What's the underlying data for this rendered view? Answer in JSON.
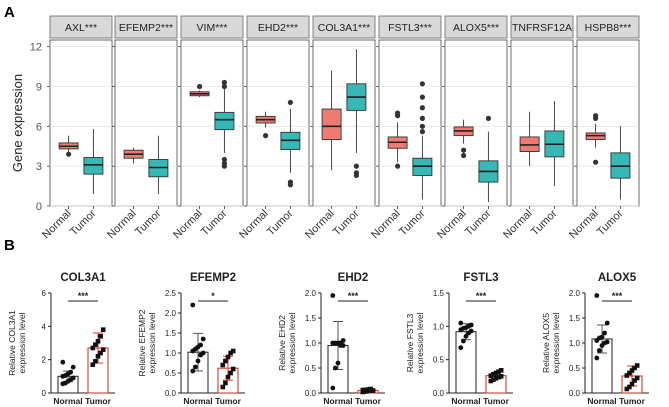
{
  "chart_data": {
    "panel_a": {
      "label": "A",
      "type": "boxplot",
      "ylabel": "Gene expression",
      "ylim": [
        0,
        12.5
      ],
      "yticks": [
        0,
        3,
        6,
        9,
        12
      ],
      "groups": [
        "Normal",
        "Tumor"
      ],
      "colors": {
        "Normal": "#f07a73",
        "Tumor": "#36b8b4"
      },
      "facets": [
        {
          "title": "AXL***",
          "Normal": {
            "q1": 4.3,
            "med": 4.5,
            "q3": 4.75,
            "lo": 4.0,
            "hi": 5.3,
            "out": [
              3.9
            ]
          },
          "Tumor": {
            "q1": 2.4,
            "med": 3.1,
            "q3": 3.65,
            "lo": 0.9,
            "hi": 5.8,
            "out": []
          }
        },
        {
          "title": "EFEMP2***",
          "Normal": {
            "q1": 3.6,
            "med": 3.9,
            "q3": 4.2,
            "lo": 3.2,
            "hi": 4.4,
            "out": []
          },
          "Tumor": {
            "q1": 2.2,
            "med": 2.9,
            "q3": 3.5,
            "lo": 0.9,
            "hi": 5.3,
            "out": []
          }
        },
        {
          "title": "VIM***",
          "Normal": {
            "q1": 8.3,
            "med": 8.45,
            "q3": 8.6,
            "lo": 8.2,
            "hi": 8.7,
            "out": [
              9.0
            ]
          },
          "Tumor": {
            "q1": 5.75,
            "med": 6.5,
            "q3": 7.05,
            "lo": 4.0,
            "hi": 8.8,
            "out": [
              3.5,
              3.2,
              3.0,
              9.0,
              9.3
            ]
          }
        },
        {
          "title": "EHD2***",
          "Normal": {
            "q1": 6.25,
            "med": 6.5,
            "q3": 6.75,
            "lo": 5.9,
            "hi": 7.1,
            "out": [
              5.3
            ]
          },
          "Tumor": {
            "q1": 4.25,
            "med": 4.95,
            "q3": 5.55,
            "lo": 2.5,
            "hi": 7.3,
            "out": [
              1.8,
              1.6,
              7.8
            ]
          }
        },
        {
          "title": "COL3A1***",
          "Normal": {
            "q1": 5.0,
            "med": 6.0,
            "q3": 7.3,
            "lo": 2.7,
            "hi": 10.2,
            "out": []
          },
          "Tumor": {
            "q1": 7.2,
            "med": 8.2,
            "q3": 9.2,
            "lo": 4.0,
            "hi": 11.8,
            "out": [
              3.0,
              2.5,
              2.3
            ]
          }
        },
        {
          "title": "FSTL3***",
          "Normal": {
            "q1": 4.35,
            "med": 4.8,
            "q3": 5.2,
            "lo": 3.3,
            "hi": 6.3,
            "out": [
              6.8,
              7.0,
              3.0
            ]
          },
          "Tumor": {
            "q1": 2.3,
            "med": 3.0,
            "q3": 3.6,
            "lo": 0.5,
            "hi": 5.3,
            "out": [
              5.6,
              6.0,
              6.6,
              7.4,
              8.2,
              9.2
            ]
          }
        },
        {
          "title": "ALOX5***",
          "Normal": {
            "q1": 5.3,
            "med": 5.65,
            "q3": 5.95,
            "lo": 4.7,
            "hi": 6.5,
            "out": [
              4.2,
              3.8
            ]
          },
          "Tumor": {
            "q1": 1.8,
            "med": 2.6,
            "q3": 3.4,
            "lo": 0.3,
            "hi": 5.6,
            "out": [
              6.6
            ]
          }
        },
        {
          "title": "TNFRSF12A",
          "Normal": {
            "q1": 4.1,
            "med": 4.6,
            "q3": 5.2,
            "lo": 3.0,
            "hi": 7.1,
            "out": []
          },
          "Tumor": {
            "q1": 3.7,
            "med": 4.65,
            "q3": 5.65,
            "lo": 1.5,
            "hi": 7.9,
            "out": []
          }
        },
        {
          "title": "HSPB8***",
          "Normal": {
            "q1": 5.0,
            "med": 5.3,
            "q3": 5.5,
            "lo": 4.4,
            "hi": 6.2,
            "out": [
              6.6,
              6.8,
              3.3
            ]
          },
          "Tumor": {
            "q1": 2.1,
            "med": 3.0,
            "q3": 4.0,
            "lo": 0.5,
            "hi": 6.0,
            "out": []
          }
        }
      ]
    },
    "panel_b": {
      "label": "B",
      "type": "bar",
      "categories": [
        "Normal",
        "Tumor"
      ],
      "plots": [
        {
          "title": "COL3A1",
          "ylabel": [
            "Relative COL3A1",
            "expression level"
          ],
          "ylim": [
            0,
            6
          ],
          "yticks": [
            "0",
            "2",
            "4",
            "6"
          ],
          "sig": "***",
          "means": [
            1.0,
            2.7
          ],
          "sd": [
            0.32,
            0.9
          ],
          "normal_points": [
            0.55,
            0.6,
            0.7,
            0.8,
            0.9,
            1.0,
            1.05,
            1.15,
            1.25,
            1.55,
            1.85
          ],
          "tumor_points": [
            1.7,
            1.9,
            2.2,
            2.4,
            2.6,
            2.7,
            2.9,
            3.1,
            3.4,
            3.8
          ]
        },
        {
          "title": "EFEMP2",
          "ylabel": [
            "Relative EFEMP2",
            "expression level"
          ],
          "ylim": [
            0,
            2.5
          ],
          "yticks": [
            "0.0",
            "0.5",
            "1.0",
            "1.5",
            "2.0",
            "2.5"
          ],
          "sig": "*",
          "means": [
            1.02,
            0.62
          ],
          "sd": [
            0.47,
            0.3
          ],
          "normal_points": [
            0.55,
            0.65,
            0.8,
            0.95,
            1.0,
            1.05,
            1.1,
            1.15,
            1.2,
            1.35,
            2.2
          ],
          "tumor_points": [
            0.15,
            0.25,
            0.4,
            0.5,
            0.6,
            0.7,
            0.8,
            0.9,
            1.0,
            1.05
          ]
        },
        {
          "title": "EHD2",
          "ylabel": [
            "Relative EHD2",
            "expression level"
          ],
          "ylim": [
            0,
            2
          ],
          "yticks": [
            "0.0",
            "0.5",
            "1.0",
            "1.5",
            "2.0"
          ],
          "sig": "***",
          "means": [
            0.95,
            0.05
          ],
          "sd": [
            0.48,
            0.03
          ],
          "normal_points": [
            0.1,
            0.5,
            0.6,
            0.95,
            0.95,
            1.0,
            1.0,
            1.0,
            1.0,
            1.05,
            1.95
          ],
          "tumor_points": [
            0.02,
            0.03,
            0.04,
            0.05,
            0.05,
            0.06,
            0.06,
            0.07,
            0.08
          ]
        },
        {
          "title": "FSTL3",
          "ylabel": [
            "Relative FSTL3",
            "expression level"
          ],
          "ylim": [
            0,
            1.5
          ],
          "yticks": [
            "0.0",
            "0.5",
            "1.0",
            "1.5"
          ],
          "sig": "***",
          "means": [
            0.92,
            0.26
          ],
          "sd": [
            0.12,
            0.05
          ],
          "normal_points": [
            0.68,
            0.78,
            0.85,
            0.9,
            0.93,
            0.95,
            0.97,
            0.98,
            1.0,
            1.02,
            1.05
          ],
          "tumor_points": [
            0.18,
            0.2,
            0.22,
            0.24,
            0.25,
            0.26,
            0.28,
            0.3,
            0.32,
            0.34
          ]
        },
        {
          "title": "ALOX5",
          "ylabel": [
            "Relative ALOX5",
            "expression level"
          ],
          "ylim": [
            0,
            2
          ],
          "yticks": [
            "0.0",
            "0.5",
            "1.0",
            "1.5",
            "2.0"
          ],
          "sig": "***",
          "means": [
            1.08,
            0.34
          ],
          "sd": [
            0.28,
            0.2
          ],
          "normal_points": [
            0.7,
            0.85,
            0.95,
            1.0,
            1.02,
            1.05,
            1.1,
            1.12,
            1.2,
            1.4,
            1.95
          ],
          "tumor_points": [
            0.08,
            0.12,
            0.18,
            0.25,
            0.3,
            0.35,
            0.4,
            0.45,
            0.5,
            0.55
          ]
        }
      ]
    }
  }
}
